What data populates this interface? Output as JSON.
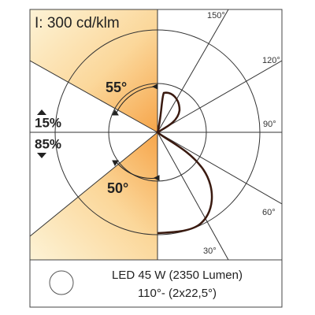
{
  "header": {
    "intensity": "I: 300 cd/klm"
  },
  "angles": {
    "a150": "150°",
    "a120": "120°",
    "a90": "90°",
    "a60": "60°",
    "a30": "30°"
  },
  "beam": {
    "upper_angle": "55°",
    "lower_angle": "50°",
    "upper_share": "15%",
    "lower_share": "85%"
  },
  "info": {
    "line1": "LED 45 W (2350 Lumen)",
    "line2": "110°- (2x22,5°)"
  }
}
